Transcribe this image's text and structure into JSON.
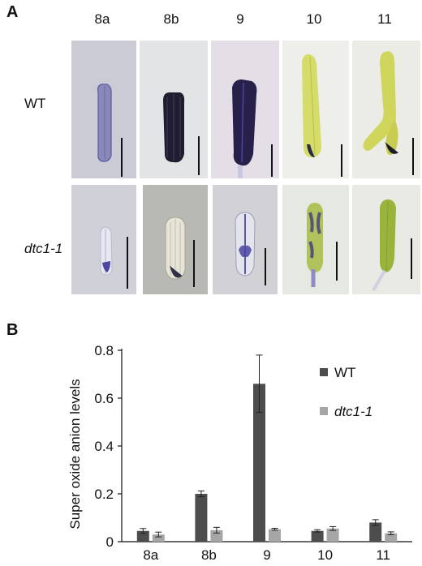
{
  "panel_a": {
    "letter": "A",
    "stages": [
      "8a",
      "8b",
      "9",
      "10",
      "11"
    ],
    "rows": [
      "WT",
      "dtc1-1"
    ]
  },
  "panel_b": {
    "letter": "B"
  },
  "colors": {
    "wt": "#4d4d4d",
    "mutant": "#a6a6a6"
  },
  "chart_data": {
    "type": "bar",
    "categories": [
      "8a",
      "8b",
      "9",
      "10",
      "11"
    ],
    "series": [
      {
        "name": "WT",
        "values": [
          0.045,
          0.2,
          0.66,
          0.045,
          0.08
        ],
        "errors": [
          0.01,
          0.012,
          0.12,
          0.005,
          0.012
        ]
      },
      {
        "name": "dtc1-1",
        "values": [
          0.03,
          0.048,
          0.052,
          0.055,
          0.035
        ],
        "errors": [
          0.01,
          0.012,
          0.004,
          0.008,
          0.006
        ]
      }
    ],
    "ylabel": "Super oxide anion levels",
    "ylim": [
      0,
      0.8
    ],
    "yticks": [
      "0",
      "0.2",
      "0.4",
      "0.6",
      "0.8"
    ],
    "grid": false,
    "legend": "top-right"
  }
}
